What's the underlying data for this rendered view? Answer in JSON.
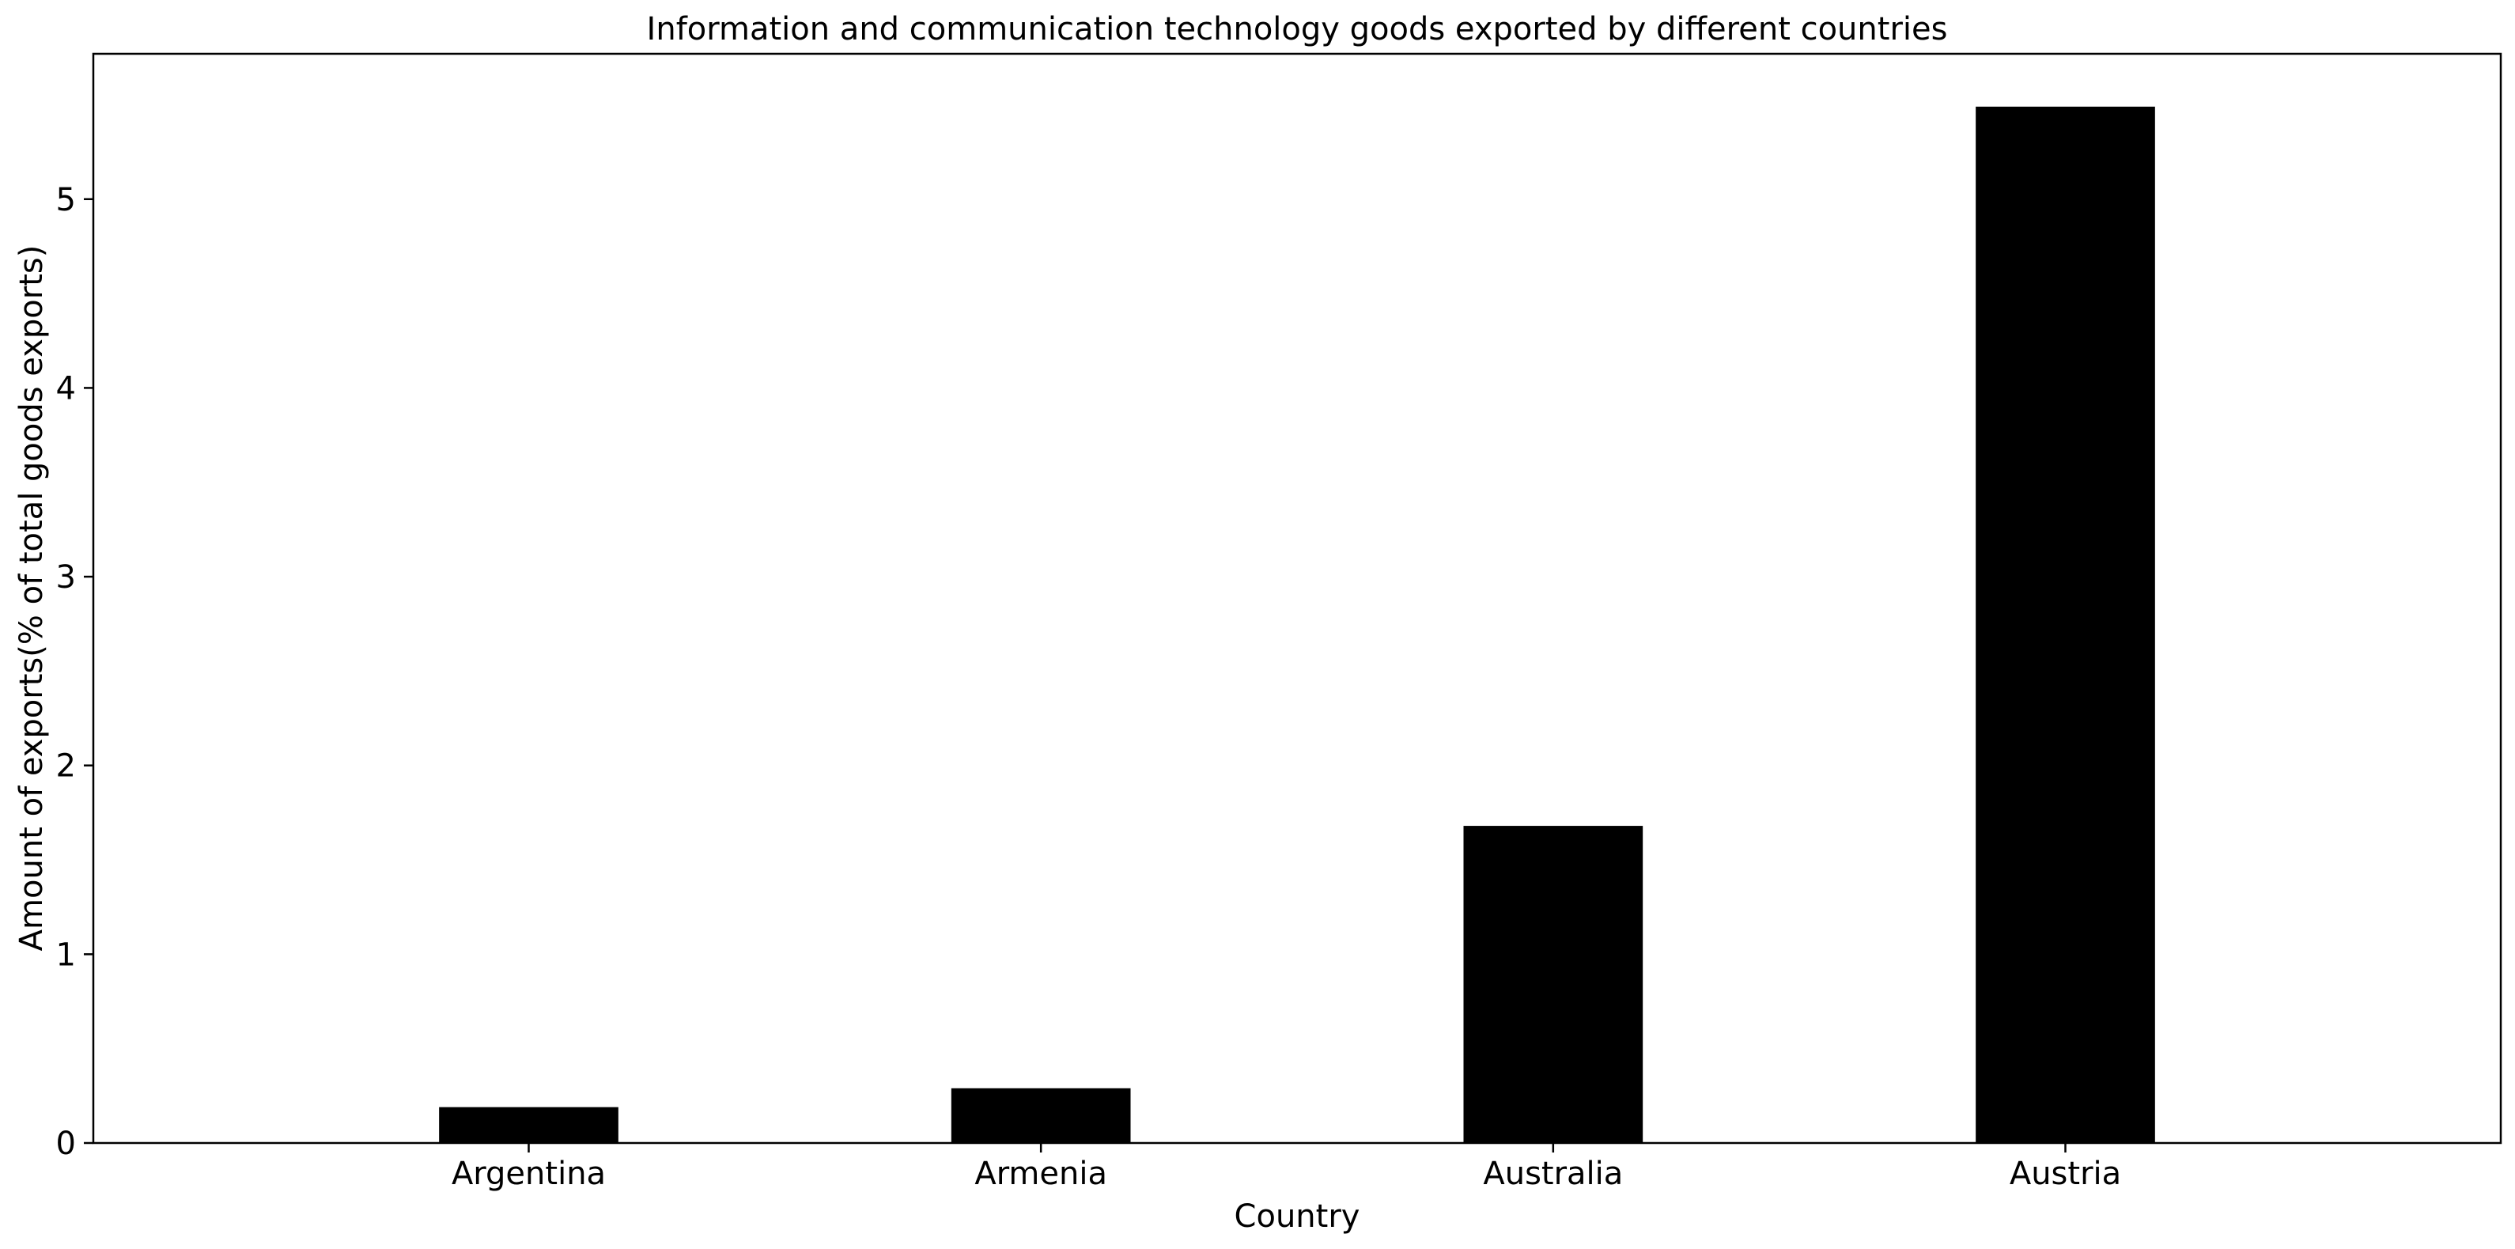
{
  "chart_data": {
    "type": "bar",
    "title": "Information and communication technology goods exported by different countries",
    "xlabel": "Country",
    "ylabel": "Amount of exports(% of total goods exports)",
    "categories": [
      "Argentina",
      "Armenia",
      "Australia",
      "Austria"
    ],
    "values": [
      0.19,
      0.29,
      1.68,
      5.49
    ],
    "ylim": [
      0,
      5.77
    ],
    "yticks": [
      0,
      1,
      2,
      3,
      4,
      5
    ],
    "bar_color": "#000000",
    "grid": false,
    "legend": "none"
  }
}
